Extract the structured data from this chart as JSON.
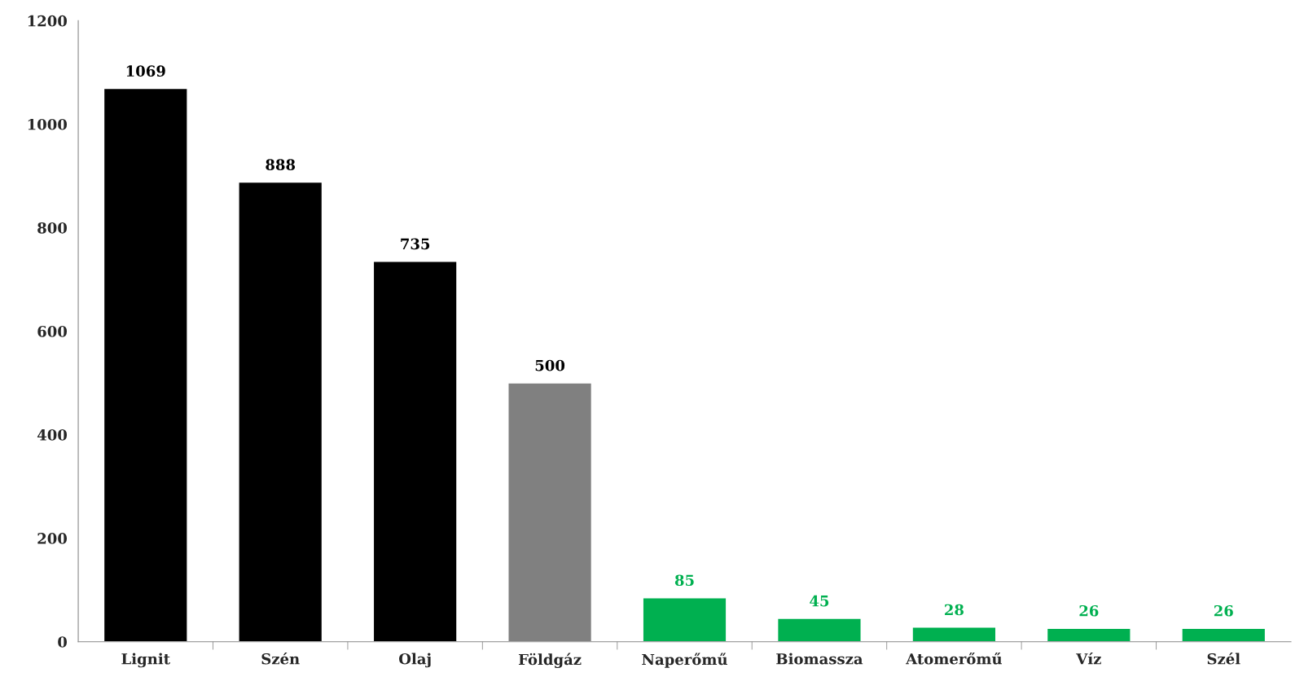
{
  "chart_data": {
    "type": "bar",
    "categories": [
      "Lignit",
      "Szén",
      "Olaj",
      "Földgáz",
      "Naperőmű",
      "Biomassza",
      "Atomerőmű",
      "Víz",
      "Szél"
    ],
    "values": [
      1069,
      888,
      735,
      500,
      85,
      45,
      28,
      26,
      26
    ],
    "colors": [
      "#000000",
      "#000000",
      "#000000",
      "#808080",
      "#00b050",
      "#00b050",
      "#00b050",
      "#00b050",
      "#00b050"
    ],
    "ylim": [
      0,
      1200
    ],
    "yticks": [
      0,
      200,
      400,
      600,
      800,
      1000,
      1200
    ],
    "data_labels": true,
    "grid": false,
    "legend": false
  }
}
